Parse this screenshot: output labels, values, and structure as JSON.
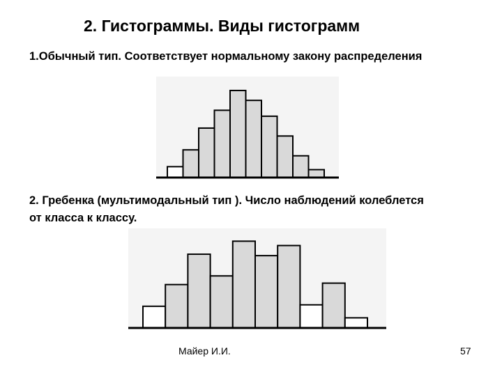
{
  "slide": {
    "title": "2. Гистограммы. Виды гистограмм",
    "item1": "1.Обычный тип. Соответствует нормальному закону распределения",
    "item2_line1": "2. Гребенка (мультимодальный тип ). Число наблюдений колеблется",
    "item2_line2": "от класса к классу.",
    "author": "Майер И.И.",
    "page_number": "57"
  },
  "colors": {
    "bar_fill": "#d9d9d9",
    "bar_fill_light": "#ffffff",
    "bar_stroke": "#000000",
    "chart_bg": "#f4f4f4"
  },
  "chart_data": [
    {
      "type": "bar",
      "name": "normal",
      "values": [
        1.1,
        2.8,
        5.0,
        6.8,
        8.8,
        7.8,
        6.2,
        4.2,
        2.2,
        0.8
      ],
      "ylim": [
        0,
        9.5
      ],
      "grid": false
    },
    {
      "type": "bar",
      "name": "comb",
      "values": [
        1.5,
        3.0,
        5.1,
        3.6,
        6.0,
        5.0,
        5.7,
        1.6,
        3.1,
        0.7
      ],
      "ylim": [
        0,
        6.5
      ],
      "grid": false
    }
  ]
}
